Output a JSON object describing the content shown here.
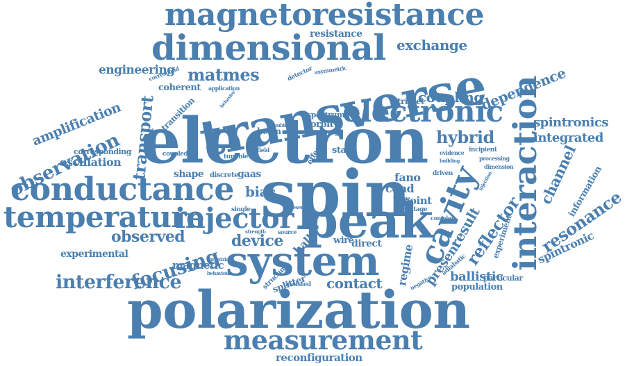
{
  "style": {
    "word_color": "#4a7fb0",
    "background": "#ffffff"
  },
  "words": {
    "magnetoresistance": "magnetoresistance",
    "dimensional": "dimensional",
    "transverse": "transverse",
    "electron": "electron",
    "electronic": "electronic",
    "spin": "spin",
    "conductance": "conductance",
    "temperature": "temperature",
    "injector": "injector",
    "peak": "peak",
    "system": "system",
    "polarization": "polarization",
    "measurement": "measurement",
    "interaction": "interaction",
    "cavity": "cavity",
    "transport": "transport",
    "observation": "observation",
    "amplification": "amplification",
    "engineering": "engineering",
    "matmes": "matmes",
    "coherent": "coherent",
    "exchange": "exchange",
    "resistance": "resistance",
    "dependence": "dependence",
    "coupling": "coupling",
    "spintronics": "spintronics",
    "integrated": "integrated",
    "hybrid": "hybrid",
    "channel": "channel",
    "resonance": "resonance",
    "information": "information",
    "spintronic": "spintronic",
    "reflector": "reflector",
    "result": "result",
    "present": "present",
    "regime": "regime",
    "experiment": "experiment",
    "focusing": "focusing",
    "observed": "observed",
    "device": "device",
    "interference": "interference",
    "contact": "contact",
    "magnetic": "magnetic",
    "experimental": "experimental",
    "oscillation": "oscillation",
    "corresponding": "corresponding",
    "shape": "shape",
    "bias": "bias",
    "gaas": "gaas",
    "hall": "hall",
    "fano": "fano",
    "cond": "cond",
    "point": "point",
    "wire": "wire",
    "direct": "direct",
    "ballistic": "ballistic",
    "particular": "particular",
    "population": "population",
    "reconfiguration": "reconfiguration",
    "triplet": "triplet",
    "orbit": "orbit",
    "state": "state",
    "spectrum": "spectrum",
    "beam": "beam",
    "coupled": "coupled",
    "tunable": "tunable",
    "discrete": "discrete",
    "transition": "transition",
    "detector": "detector",
    "asymmetric": "asymmetric",
    "correspond": "correspond",
    "application": "application",
    "behavior": "behavior",
    "field": "field",
    "length": "length",
    "double": "double",
    "effect": "effect",
    "incipient": "incipient",
    "evidence": "evidence",
    "processing": "processing",
    "dimension": "dimension",
    "driven": "driven",
    "voltage": "voltage",
    "complex": "complex",
    "adiabatic": "adiabatic",
    "negative": "negative",
    "assisted": "assisted",
    "splitter": "splitter",
    "structure": "structure",
    "lorentzian": "lorentzian",
    "behaviour": "behaviour",
    "strength": "strength",
    "single": "single",
    "source": "source",
    "presence": "presence",
    "injection": "injection",
    "building": "building",
    "drain": "drain",
    "unique": "unique"
  }
}
